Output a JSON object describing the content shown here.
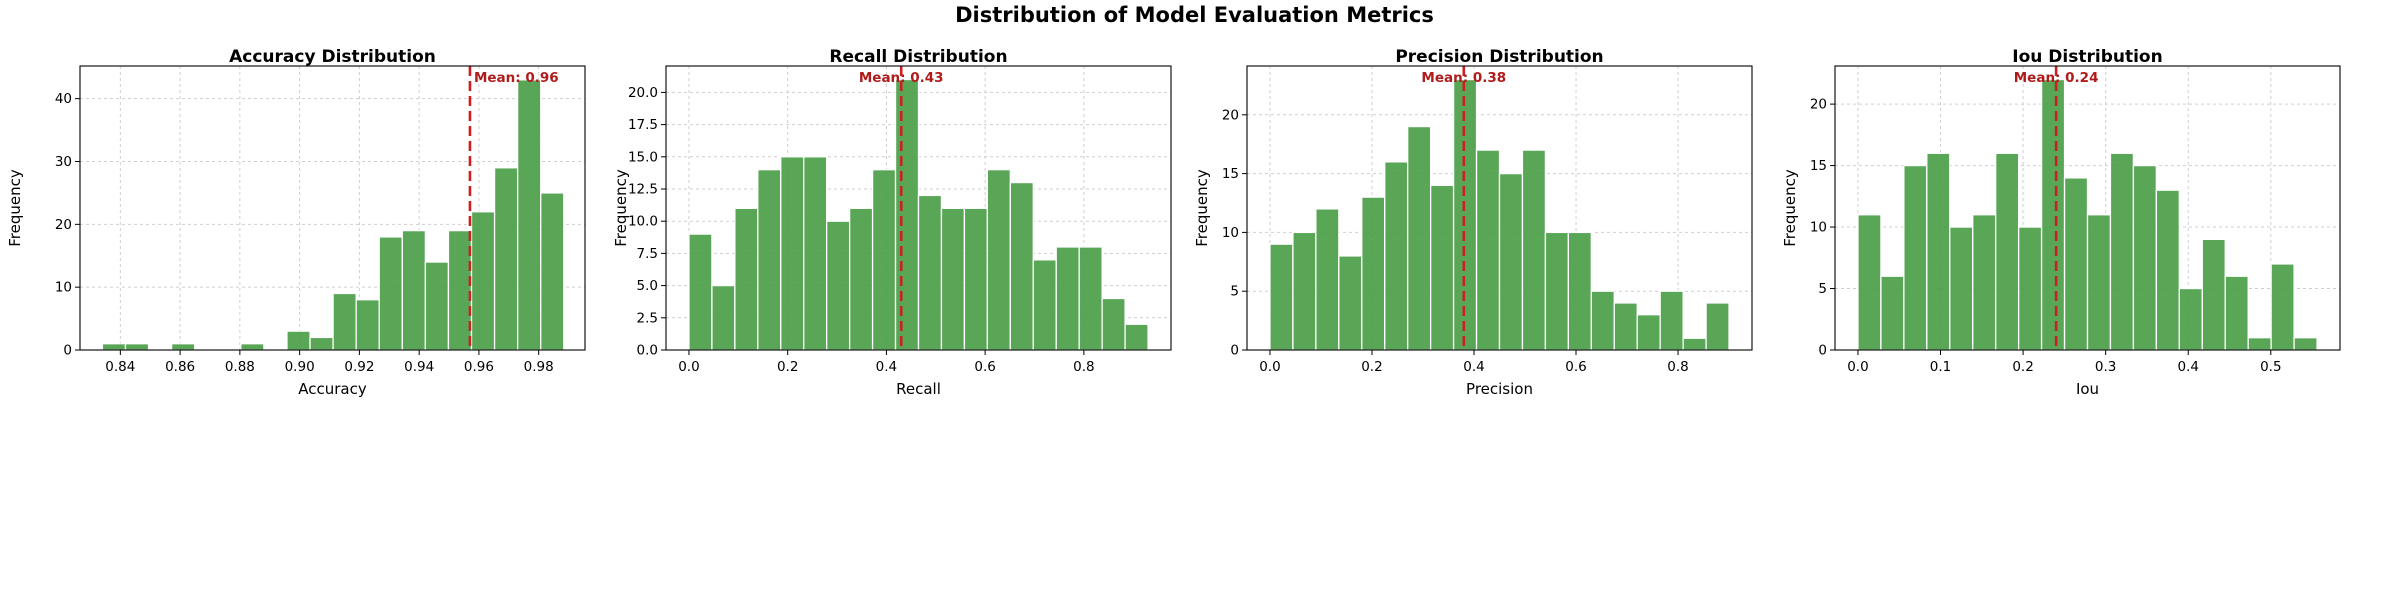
{
  "figure": {
    "title": "Distribution of Model Evaluation Metrics"
  },
  "chart_data": [
    {
      "type": "bar",
      "title": "Accuracy Distribution",
      "xlabel": "Accuracy",
      "ylabel": "Frequency",
      "xlim": [
        0.8265,
        0.9955
      ],
      "ylim": [
        0,
        45.2
      ],
      "xticks": [
        0.84,
        0.86,
        0.88,
        0.9,
        0.92,
        0.94,
        0.96,
        0.98
      ],
      "xtick_labels": [
        "0.84",
        "0.86",
        "0.88",
        "0.90",
        "0.92",
        "0.94",
        "0.96",
        "0.98"
      ],
      "yticks": [
        0,
        10,
        20,
        30,
        40
      ],
      "ytick_labels": [
        "0",
        "10",
        "20",
        "30",
        "40"
      ],
      "bin_start": 0.834,
      "bin_width": 0.00772,
      "values": [
        1,
        1,
        0,
        1,
        0,
        0,
        1,
        0,
        3,
        2,
        9,
        8,
        18,
        19,
        14,
        19,
        22,
        29,
        43,
        25
      ],
      "mean": 0.957,
      "mean_label": "Mean: 0.96",
      "mean_label_anchor": "start",
      "bar_color": "#4c9f48",
      "mean_color": "#cc1f1f",
      "grid": true
    },
    {
      "type": "bar",
      "title": "Recall Distribution",
      "xlabel": "Recall",
      "ylabel": "Frequency",
      "xlim": [
        -0.0465,
        0.9765
      ],
      "ylim": [
        0,
        22.05
      ],
      "xticks": [
        0.0,
        0.2,
        0.4,
        0.6,
        0.8
      ],
      "xtick_labels": [
        "0.0",
        "0.2",
        "0.4",
        "0.6",
        "0.8"
      ],
      "yticks": [
        0,
        2.5,
        5,
        7.5,
        10,
        12.5,
        15,
        17.5,
        20
      ],
      "ytick_labels": [
        "0.0",
        "2.5",
        "5.0",
        "7.5",
        "10.0",
        "12.5",
        "15.0",
        "17.5",
        "20.0"
      ],
      "bin_start": 0.0,
      "bin_width": 0.0465,
      "values": [
        9,
        5,
        11,
        14,
        15,
        15,
        10,
        11,
        14,
        21,
        12,
        11,
        11,
        14,
        13,
        7,
        8,
        8,
        4,
        2
      ],
      "mean": 0.43,
      "mean_label": "Mean: 0.43",
      "mean_label_anchor": "middle",
      "bar_color": "#4c9f48",
      "mean_color": "#cc1f1f",
      "grid": true
    },
    {
      "type": "bar",
      "title": "Precision Distribution",
      "xlabel": "Precision",
      "ylabel": "Frequency",
      "xlim": [
        -0.045,
        0.945
      ],
      "ylim": [
        0,
        24.15
      ],
      "xticks": [
        0.0,
        0.2,
        0.4,
        0.6,
        0.8
      ],
      "xtick_labels": [
        "0.0",
        "0.2",
        "0.4",
        "0.6",
        "0.8"
      ],
      "yticks": [
        0,
        5,
        10,
        15,
        20
      ],
      "ytick_labels": [
        "0",
        "5",
        "10",
        "15",
        "20"
      ],
      "bin_start": 0.0,
      "bin_width": 0.045,
      "values": [
        9,
        10,
        12,
        8,
        13,
        16,
        19,
        14,
        23,
        17,
        15,
        17,
        10,
        10,
        5,
        4,
        3,
        5,
        1,
        4
      ],
      "mean": 0.38,
      "mean_label": "Mean: 0.38",
      "mean_label_anchor": "middle",
      "bar_color": "#4c9f48",
      "mean_color": "#cc1f1f",
      "grid": true
    },
    {
      "type": "bar",
      "title": "Iou Distribution",
      "xlabel": "Iou",
      "ylabel": "Frequency",
      "xlim": [
        -0.0278,
        0.5838
      ],
      "ylim": [
        0,
        23.1
      ],
      "xticks": [
        0.0,
        0.1,
        0.2,
        0.3,
        0.4,
        0.5
      ],
      "xtick_labels": [
        "0.0",
        "0.1",
        "0.2",
        "0.3",
        "0.4",
        "0.5"
      ],
      "yticks": [
        0,
        5,
        10,
        15,
        20
      ],
      "ytick_labels": [
        "0",
        "5",
        "10",
        "15",
        "20"
      ],
      "bin_start": 0.0,
      "bin_width": 0.0278,
      "values": [
        11,
        6,
        15,
        16,
        10,
        11,
        16,
        10,
        22,
        14,
        11,
        16,
        15,
        13,
        5,
        9,
        6,
        1,
        7,
        1
      ],
      "mean": 0.24,
      "mean_label": "Mean: 0.24",
      "mean_label_anchor": "middle",
      "bar_color": "#4c9f48",
      "mean_color": "#cc1f1f",
      "grid": true
    }
  ]
}
